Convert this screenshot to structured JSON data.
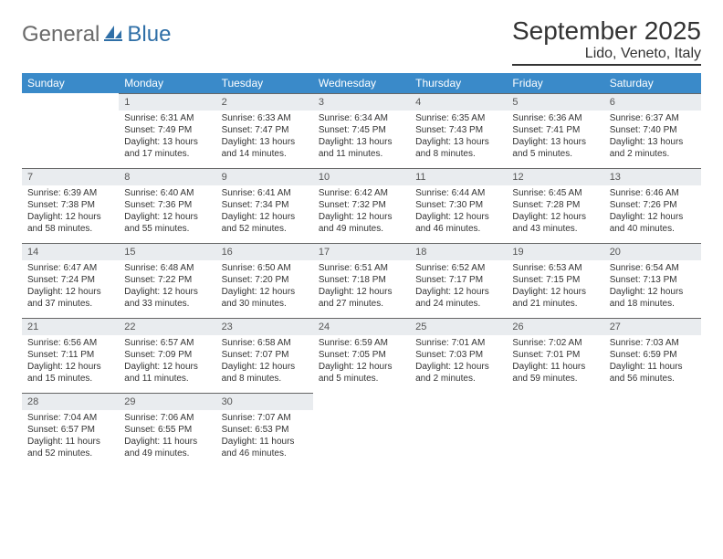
{
  "logo": {
    "word1": "General",
    "word2": "Blue"
  },
  "title": "September 2025",
  "location": "Lido, Veneto, Italy",
  "colors": {
    "header_bg": "#3a8ac9",
    "header_text": "#ffffff",
    "daynum_bg": "#e9ecef",
    "rule": "#333333",
    "logo_gray": "#6a6a6a",
    "logo_blue": "#2f6fa7"
  },
  "weekdays": [
    "Sunday",
    "Monday",
    "Tuesday",
    "Wednesday",
    "Thursday",
    "Friday",
    "Saturday"
  ],
  "weeks": [
    [
      null,
      {
        "n": "1",
        "sr": "Sunrise: 6:31 AM",
        "ss": "Sunset: 7:49 PM",
        "dl1": "Daylight: 13 hours",
        "dl2": "and 17 minutes."
      },
      {
        "n": "2",
        "sr": "Sunrise: 6:33 AM",
        "ss": "Sunset: 7:47 PM",
        "dl1": "Daylight: 13 hours",
        "dl2": "and 14 minutes."
      },
      {
        "n": "3",
        "sr": "Sunrise: 6:34 AM",
        "ss": "Sunset: 7:45 PM",
        "dl1": "Daylight: 13 hours",
        "dl2": "and 11 minutes."
      },
      {
        "n": "4",
        "sr": "Sunrise: 6:35 AM",
        "ss": "Sunset: 7:43 PM",
        "dl1": "Daylight: 13 hours",
        "dl2": "and 8 minutes."
      },
      {
        "n": "5",
        "sr": "Sunrise: 6:36 AM",
        "ss": "Sunset: 7:41 PM",
        "dl1": "Daylight: 13 hours",
        "dl2": "and 5 minutes."
      },
      {
        "n": "6",
        "sr": "Sunrise: 6:37 AM",
        "ss": "Sunset: 7:40 PM",
        "dl1": "Daylight: 13 hours",
        "dl2": "and 2 minutes."
      }
    ],
    [
      {
        "n": "7",
        "sr": "Sunrise: 6:39 AM",
        "ss": "Sunset: 7:38 PM",
        "dl1": "Daylight: 12 hours",
        "dl2": "and 58 minutes."
      },
      {
        "n": "8",
        "sr": "Sunrise: 6:40 AM",
        "ss": "Sunset: 7:36 PM",
        "dl1": "Daylight: 12 hours",
        "dl2": "and 55 minutes."
      },
      {
        "n": "9",
        "sr": "Sunrise: 6:41 AM",
        "ss": "Sunset: 7:34 PM",
        "dl1": "Daylight: 12 hours",
        "dl2": "and 52 minutes."
      },
      {
        "n": "10",
        "sr": "Sunrise: 6:42 AM",
        "ss": "Sunset: 7:32 PM",
        "dl1": "Daylight: 12 hours",
        "dl2": "and 49 minutes."
      },
      {
        "n": "11",
        "sr": "Sunrise: 6:44 AM",
        "ss": "Sunset: 7:30 PM",
        "dl1": "Daylight: 12 hours",
        "dl2": "and 46 minutes."
      },
      {
        "n": "12",
        "sr": "Sunrise: 6:45 AM",
        "ss": "Sunset: 7:28 PM",
        "dl1": "Daylight: 12 hours",
        "dl2": "and 43 minutes."
      },
      {
        "n": "13",
        "sr": "Sunrise: 6:46 AM",
        "ss": "Sunset: 7:26 PM",
        "dl1": "Daylight: 12 hours",
        "dl2": "and 40 minutes."
      }
    ],
    [
      {
        "n": "14",
        "sr": "Sunrise: 6:47 AM",
        "ss": "Sunset: 7:24 PM",
        "dl1": "Daylight: 12 hours",
        "dl2": "and 37 minutes."
      },
      {
        "n": "15",
        "sr": "Sunrise: 6:48 AM",
        "ss": "Sunset: 7:22 PM",
        "dl1": "Daylight: 12 hours",
        "dl2": "and 33 minutes."
      },
      {
        "n": "16",
        "sr": "Sunrise: 6:50 AM",
        "ss": "Sunset: 7:20 PM",
        "dl1": "Daylight: 12 hours",
        "dl2": "and 30 minutes."
      },
      {
        "n": "17",
        "sr": "Sunrise: 6:51 AM",
        "ss": "Sunset: 7:18 PM",
        "dl1": "Daylight: 12 hours",
        "dl2": "and 27 minutes."
      },
      {
        "n": "18",
        "sr": "Sunrise: 6:52 AM",
        "ss": "Sunset: 7:17 PM",
        "dl1": "Daylight: 12 hours",
        "dl2": "and 24 minutes."
      },
      {
        "n": "19",
        "sr": "Sunrise: 6:53 AM",
        "ss": "Sunset: 7:15 PM",
        "dl1": "Daylight: 12 hours",
        "dl2": "and 21 minutes."
      },
      {
        "n": "20",
        "sr": "Sunrise: 6:54 AM",
        "ss": "Sunset: 7:13 PM",
        "dl1": "Daylight: 12 hours",
        "dl2": "and 18 minutes."
      }
    ],
    [
      {
        "n": "21",
        "sr": "Sunrise: 6:56 AM",
        "ss": "Sunset: 7:11 PM",
        "dl1": "Daylight: 12 hours",
        "dl2": "and 15 minutes."
      },
      {
        "n": "22",
        "sr": "Sunrise: 6:57 AM",
        "ss": "Sunset: 7:09 PM",
        "dl1": "Daylight: 12 hours",
        "dl2": "and 11 minutes."
      },
      {
        "n": "23",
        "sr": "Sunrise: 6:58 AM",
        "ss": "Sunset: 7:07 PM",
        "dl1": "Daylight: 12 hours",
        "dl2": "and 8 minutes."
      },
      {
        "n": "24",
        "sr": "Sunrise: 6:59 AM",
        "ss": "Sunset: 7:05 PM",
        "dl1": "Daylight: 12 hours",
        "dl2": "and 5 minutes."
      },
      {
        "n": "25",
        "sr": "Sunrise: 7:01 AM",
        "ss": "Sunset: 7:03 PM",
        "dl1": "Daylight: 12 hours",
        "dl2": "and 2 minutes."
      },
      {
        "n": "26",
        "sr": "Sunrise: 7:02 AM",
        "ss": "Sunset: 7:01 PM",
        "dl1": "Daylight: 11 hours",
        "dl2": "and 59 minutes."
      },
      {
        "n": "27",
        "sr": "Sunrise: 7:03 AM",
        "ss": "Sunset: 6:59 PM",
        "dl1": "Daylight: 11 hours",
        "dl2": "and 56 minutes."
      }
    ],
    [
      {
        "n": "28",
        "sr": "Sunrise: 7:04 AM",
        "ss": "Sunset: 6:57 PM",
        "dl1": "Daylight: 11 hours",
        "dl2": "and 52 minutes."
      },
      {
        "n": "29",
        "sr": "Sunrise: 7:06 AM",
        "ss": "Sunset: 6:55 PM",
        "dl1": "Daylight: 11 hours",
        "dl2": "and 49 minutes."
      },
      {
        "n": "30",
        "sr": "Sunrise: 7:07 AM",
        "ss": "Sunset: 6:53 PM",
        "dl1": "Daylight: 11 hours",
        "dl2": "and 46 minutes."
      },
      null,
      null,
      null,
      null
    ]
  ]
}
